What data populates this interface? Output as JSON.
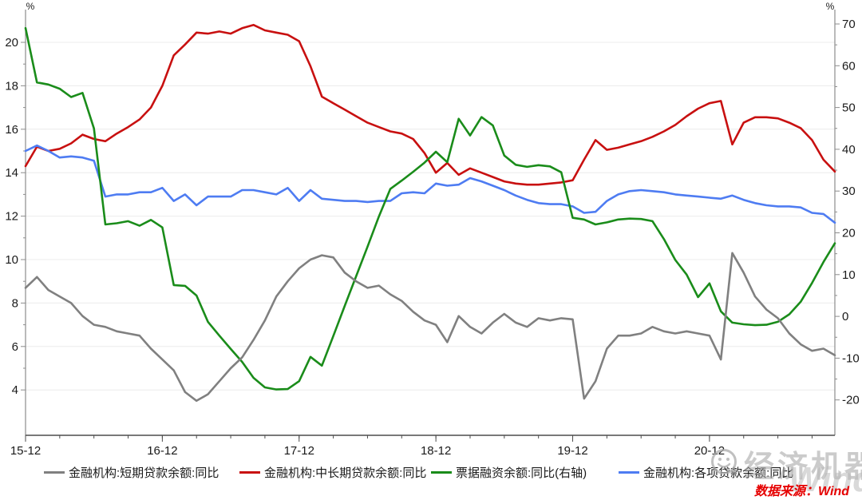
{
  "chart_data": {
    "type": "line",
    "title": "",
    "x_axis": {
      "tick_labels": [
        "15-12",
        "16-12",
        "17-12",
        "18-12",
        "19-12",
        "20-12"
      ],
      "tick_interval_months": 12,
      "minor_tick_interval_months": 3,
      "start_month": "2015-12",
      "end_month": "2021-11"
    },
    "left_axis": {
      "unit": "%",
      "min": 4,
      "max": 20,
      "tick_step": 2,
      "ticks": [
        20,
        18,
        16,
        14,
        12,
        10,
        8,
        6,
        4
      ]
    },
    "right_axis": {
      "unit": "%",
      "min": -20,
      "max": 70,
      "tick_step": 10,
      "ticks": [
        70,
        60,
        50,
        40,
        30,
        20,
        10,
        0,
        -10,
        -20
      ]
    },
    "grid": "horizontal-light",
    "legend_position": "bottom",
    "series": [
      {
        "name": "金融机构:短期贷款余额:同比",
        "axis": "left",
        "color": "#808080",
        "values": [
          8.7,
          9.2,
          8.6,
          8.3,
          8.0,
          7.4,
          7.0,
          6.9,
          6.7,
          6.6,
          6.5,
          5.9,
          5.4,
          4.9,
          3.9,
          3.5,
          3.8,
          4.4,
          5.0,
          5.5,
          6.3,
          7.2,
          8.3,
          9.0,
          9.6,
          10.0,
          10.2,
          10.1,
          9.4,
          9.0,
          8.7,
          8.8,
          8.4,
          8.1,
          7.6,
          7.2,
          7.0,
          6.2,
          7.4,
          6.9,
          6.6,
          7.1,
          7.5,
          7.1,
          6.9,
          7.3,
          7.2,
          7.3,
          7.25,
          3.6,
          4.4,
          5.9,
          6.5,
          6.5,
          6.6,
          6.9,
          6.7,
          6.6,
          6.7,
          6.6,
          6.5,
          5.4,
          10.3,
          9.4,
          8.3,
          7.7,
          7.3,
          6.6,
          6.1,
          5.8,
          5.9,
          5.6
        ]
      },
      {
        "name": "金融机构:中长期贷款余额:同比",
        "axis": "left",
        "color": "#c81010",
        "values": [
          14.3,
          15.2,
          15.0,
          15.1,
          15.35,
          15.75,
          15.55,
          15.45,
          15.8,
          16.1,
          16.45,
          17.0,
          18.0,
          19.4,
          19.9,
          20.45,
          20.4,
          20.5,
          20.4,
          20.65,
          20.8,
          20.55,
          20.45,
          20.35,
          20.05,
          18.9,
          17.5,
          17.2,
          16.9,
          16.6,
          16.3,
          16.1,
          15.9,
          15.8,
          15.55,
          14.9,
          14.0,
          14.45,
          13.9,
          14.2,
          14.0,
          13.8,
          13.6,
          13.5,
          13.45,
          13.45,
          13.5,
          13.55,
          13.65,
          14.6,
          15.5,
          15.05,
          15.15,
          15.3,
          15.45,
          15.65,
          15.9,
          16.2,
          16.6,
          16.95,
          17.2,
          17.3,
          15.3,
          16.3,
          16.55,
          16.55,
          16.5,
          16.3,
          16.05,
          15.5,
          14.6,
          14.05
        ]
      },
      {
        "name": "票据融资余额:同比(右轴)",
        "axis": "right",
        "color": "#1a8c1a",
        "values": [
          69.0,
          56.0,
          55.5,
          54.5,
          52.5,
          53.5,
          45.0,
          22.0,
          22.3,
          22.8,
          21.7,
          23.1,
          21.3,
          7.5,
          7.3,
          5.0,
          -1.3,
          -4.6,
          -7.8,
          -10.9,
          -14.7,
          -17.0,
          -17.5,
          -17.4,
          -15.5,
          -9.7,
          -11.8,
          -4.7,
          2.5,
          9.6,
          16.7,
          23.9,
          30.5,
          32.5,
          34.6,
          36.8,
          39.4,
          36.9,
          47.3,
          43.3,
          47.7,
          45.7,
          38.5,
          36.3,
          35.8,
          36.2,
          35.9,
          34.5,
          23.6,
          23.2,
          22.0,
          22.5,
          23.2,
          23.4,
          23.3,
          22.8,
          18.5,
          13.5,
          10.0,
          4.6,
          7.9,
          1.2,
          -1.5,
          -1.9,
          -2.1,
          -2.0,
          -1.3,
          0.5,
          3.5,
          8.0,
          13.0,
          17.5
        ]
      },
      {
        "name": "金融机构:各项贷款余额:同比",
        "axis": "left",
        "color": "#4e7cf2",
        "values": [
          15.0,
          15.25,
          15.0,
          14.7,
          14.75,
          14.7,
          14.55,
          12.9,
          13.0,
          13.0,
          13.1,
          13.1,
          13.3,
          12.7,
          13.0,
          12.5,
          12.9,
          12.9,
          12.9,
          13.2,
          13.2,
          13.1,
          13.0,
          13.3,
          12.7,
          13.2,
          12.8,
          12.75,
          12.7,
          12.7,
          12.65,
          12.7,
          12.7,
          13.05,
          13.1,
          13.05,
          13.5,
          13.4,
          13.45,
          13.75,
          13.6,
          13.4,
          13.2,
          12.95,
          12.75,
          12.6,
          12.55,
          12.55,
          12.45,
          12.15,
          12.2,
          12.7,
          13.0,
          13.15,
          13.2,
          13.15,
          13.1,
          13.0,
          12.95,
          12.9,
          12.85,
          12.8,
          12.95,
          12.75,
          12.6,
          12.5,
          12.45,
          12.45,
          12.4,
          12.15,
          12.1,
          11.7
        ]
      }
    ]
  },
  "legend": {
    "items": [
      {
        "label": "金融机构:短期贷款余额:同比",
        "color": "#808080"
      },
      {
        "label": "金融机构:中长期贷款余额:同比",
        "color": "#c81010"
      },
      {
        "label": "票据融资余额:同比(右轴)",
        "color": "#1a8c1a"
      },
      {
        "label": "金融机构:各项贷款余额:同比",
        "color": "#4e7cf2"
      }
    ]
  },
  "source": {
    "text": "数据来源：Wind",
    "color": "#e60000"
  },
  "watermark": {
    "badge_text": "经济机器",
    "brand_text": "Wind"
  }
}
